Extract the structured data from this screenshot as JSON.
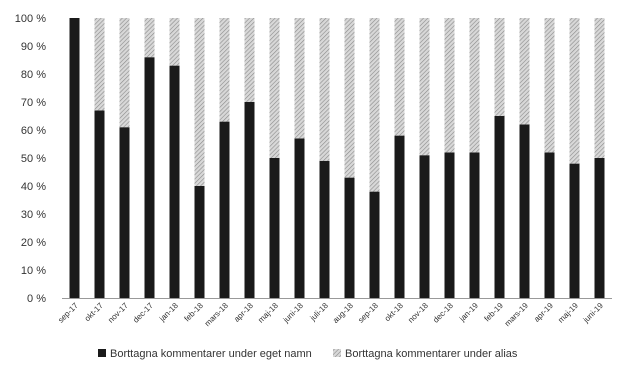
{
  "chart_data": {
    "type": "bar",
    "stacked": true,
    "percent": true,
    "categories": [
      "sep-17",
      "okt-17",
      "nov-17",
      "dec-17",
      "jan-18",
      "feb-18",
      "mars-18",
      "apr-18",
      "maj-18",
      "juni-18",
      "juli-18",
      "aug-18",
      "sep-18",
      "okt-18",
      "nov-18",
      "dec-18",
      "jan-19",
      "feb-19",
      "mars-19",
      "apr-19",
      "maj-19",
      "juni-19"
    ],
    "series": [
      {
        "name": "Borttagna kommentarer under eget namn",
        "color": "#1a1a1a",
        "values": [
          100,
          67,
          61,
          86,
          83,
          40,
          63,
          70,
          50,
          57,
          49,
          43,
          38,
          58,
          51,
          52,
          52,
          65,
          62,
          52,
          48,
          50
        ]
      },
      {
        "name": "Borttagna kommentarer under alias",
        "color": "#b5b5b5",
        "pattern": "hatched",
        "values": [
          0,
          33,
          39,
          14,
          17,
          60,
          37,
          30,
          50,
          43,
          51,
          57,
          62,
          42,
          49,
          48,
          48,
          35,
          38,
          48,
          52,
          50
        ]
      }
    ],
    "ylim": [
      0,
      100
    ],
    "yticks": [
      "0 %",
      "10 %",
      "20 %",
      "30 %",
      "40 %",
      "50 %",
      "60 %",
      "70 %",
      "80 %",
      "90 %",
      "100 %"
    ],
    "legend_position": "bottom",
    "grid": false
  }
}
